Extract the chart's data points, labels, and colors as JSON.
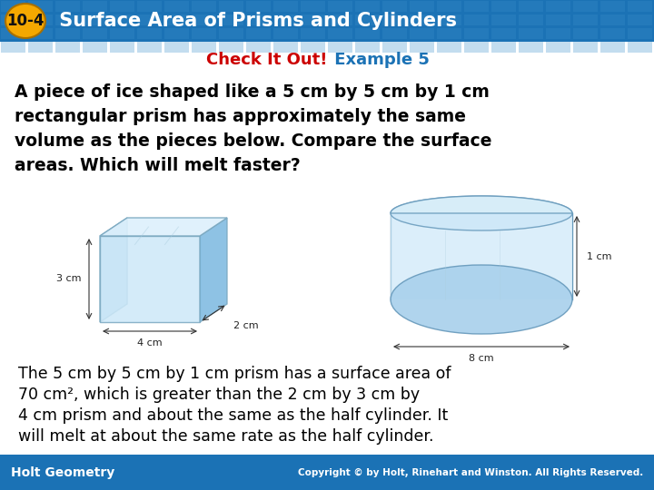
{
  "title_number": "10-4",
  "title_text": " Surface Area of Prisms and Cylinders",
  "header_bg_color": "#1b72b5",
  "header_tile_color": "#3a8fcc",
  "badge_color": "#f5a800",
  "badge_text_color": "#111111",
  "check_it_out": "Check It Out!",
  "check_color": "#cc0000",
  "example_text": " Example 5",
  "example_color": "#1b72b5",
  "body_lines": [
    "A piece of ice shaped like a 5 cm by 5 cm by 1 cm",
    "rectangular prism has approximately the same",
    "volume as the pieces below. Compare the surface",
    "areas. Which will melt faster?"
  ],
  "footer_lines": [
    "The 5 cm by 5 cm by 1 cm prism has a surface area of",
    "70 cm², which is greater than the 2 cm by 3 cm by",
    "4 cm prism and about the same as the half cylinder. It",
    "will melt at about the same rate as the half cylinder."
  ],
  "bottom_bar_color": "#1b72b5",
  "holt_text": "Holt Geometry",
  "copyright_text": "Copyright © by Holt, Rinehart and Winston. All Rights Reserved.",
  "white": "#ffffff",
  "black": "#000000",
  "body_bg": "#ffffff",
  "ice_blue_light": "#cde8f8",
  "ice_blue_mid": "#a8d0ec",
  "ice_blue_dark": "#7ab8e0",
  "dim_label_color": "#222222"
}
